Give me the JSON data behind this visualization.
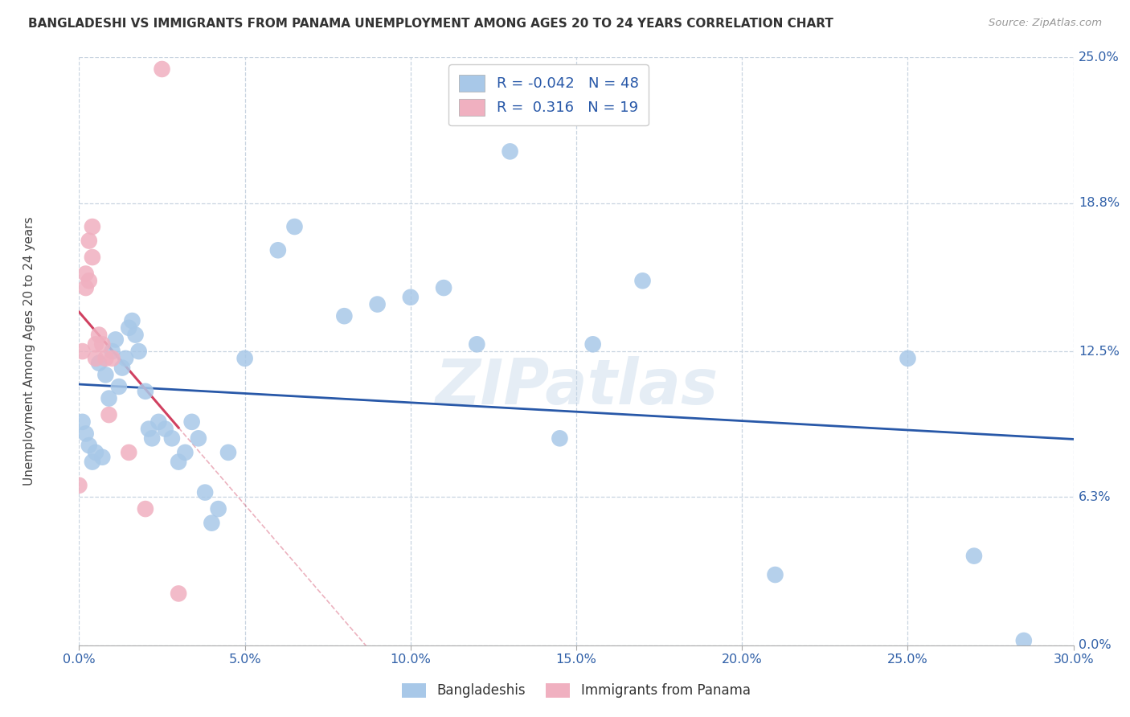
{
  "title": "BANGLADESHI VS IMMIGRANTS FROM PANAMA UNEMPLOYMENT AMONG AGES 20 TO 24 YEARS CORRELATION CHART",
  "source": "Source: ZipAtlas.com",
  "ylabel": "Unemployment Among Ages 20 to 24 years",
  "xlabel_vals": [
    0.0,
    0.05,
    0.1,
    0.15,
    0.2,
    0.25,
    0.3
  ],
  "xlabel_labels": [
    "0.0%",
    "5.0%",
    "10.0%",
    "15.0%",
    "20.0%",
    "25.0%",
    "30.0%"
  ],
  "ylabel_vals": [
    0.0,
    0.063,
    0.125,
    0.188,
    0.25
  ],
  "ylabel_labels": [
    "0.0%",
    "6.3%",
    "12.5%",
    "18.8%",
    "25.0%"
  ],
  "xlim": [
    0.0,
    0.3
  ],
  "ylim": [
    0.0,
    0.25
  ],
  "blue_R": -0.042,
  "blue_N": 48,
  "pink_R": 0.316,
  "pink_N": 19,
  "blue_color": "#a8c8e8",
  "pink_color": "#f0b0c0",
  "blue_line_color": "#2858a8",
  "pink_line_color": "#d04060",
  "watermark": "ZIPatlas",
  "background_color": "#ffffff",
  "grid_color": "#c8d4e0",
  "blue_x": [
    0.001,
    0.002,
    0.003,
    0.004,
    0.005,
    0.006,
    0.007,
    0.008,
    0.009,
    0.01,
    0.011,
    0.012,
    0.013,
    0.014,
    0.015,
    0.016,
    0.017,
    0.018,
    0.02,
    0.021,
    0.022,
    0.024,
    0.026,
    0.028,
    0.03,
    0.032,
    0.034,
    0.036,
    0.038,
    0.04,
    0.042,
    0.045,
    0.05,
    0.06,
    0.065,
    0.08,
    0.09,
    0.1,
    0.11,
    0.12,
    0.13,
    0.145,
    0.155,
    0.17,
    0.21,
    0.25,
    0.27,
    0.285
  ],
  "blue_y": [
    0.095,
    0.09,
    0.085,
    0.078,
    0.082,
    0.12,
    0.08,
    0.115,
    0.105,
    0.125,
    0.13,
    0.11,
    0.118,
    0.122,
    0.135,
    0.138,
    0.132,
    0.125,
    0.108,
    0.092,
    0.088,
    0.095,
    0.092,
    0.088,
    0.078,
    0.082,
    0.095,
    0.088,
    0.065,
    0.052,
    0.058,
    0.082,
    0.122,
    0.168,
    0.178,
    0.14,
    0.145,
    0.148,
    0.152,
    0.128,
    0.21,
    0.088,
    0.128,
    0.155,
    0.03,
    0.122,
    0.038,
    0.002
  ],
  "pink_x": [
    0.0,
    0.001,
    0.002,
    0.002,
    0.003,
    0.003,
    0.004,
    0.004,
    0.005,
    0.005,
    0.006,
    0.007,
    0.008,
    0.009,
    0.01,
    0.015,
    0.02,
    0.025,
    0.03
  ],
  "pink_y": [
    0.068,
    0.125,
    0.158,
    0.152,
    0.172,
    0.155,
    0.178,
    0.165,
    0.122,
    0.128,
    0.132,
    0.128,
    0.122,
    0.098,
    0.122,
    0.082,
    0.058,
    0.245,
    0.022
  ]
}
